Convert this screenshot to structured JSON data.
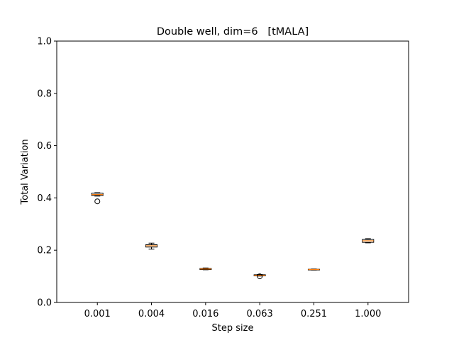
{
  "chart_data": {
    "type": "box",
    "title": "Double well, dim=6   [tMALA]",
    "xlabel": "Step size",
    "ylabel": "Total Variation",
    "ylim": [
      0.0,
      1.0
    ],
    "yticks": [
      "0.0",
      "0.2",
      "0.4",
      "0.6",
      "0.8",
      "1.0"
    ],
    "categories": [
      "0.001",
      "0.004",
      "0.016",
      "0.063",
      "0.251",
      "1.000"
    ],
    "boxes": [
      {
        "whisker_low": 0.407,
        "q1": 0.409,
        "median": 0.413,
        "q3": 0.418,
        "whisker_high": 0.42,
        "outliers": [
          0.387
        ]
      },
      {
        "whisker_low": 0.204,
        "q1": 0.212,
        "median": 0.217,
        "q3": 0.221,
        "whisker_high": 0.227,
        "outliers": []
      },
      {
        "whisker_low": 0.125,
        "q1": 0.126,
        "median": 0.128,
        "q3": 0.13,
        "whisker_high": 0.132,
        "outliers": []
      },
      {
        "whisker_low": 0.101,
        "q1": 0.102,
        "median": 0.104,
        "q3": 0.106,
        "whisker_high": 0.107,
        "outliers": [
          0.1
        ]
      },
      {
        "whisker_low": 0.124,
        "q1": 0.125,
        "median": 0.126,
        "q3": 0.127,
        "whisker_high": 0.128,
        "outliers": []
      },
      {
        "whisker_low": 0.228,
        "q1": 0.23,
        "median": 0.236,
        "q3": 0.241,
        "whisker_high": 0.244,
        "outliers": []
      }
    ],
    "colors": {
      "median": "#ff7f0e",
      "box": "#000000",
      "axes": "#000000"
    },
    "grid": false,
    "legend": "none"
  }
}
